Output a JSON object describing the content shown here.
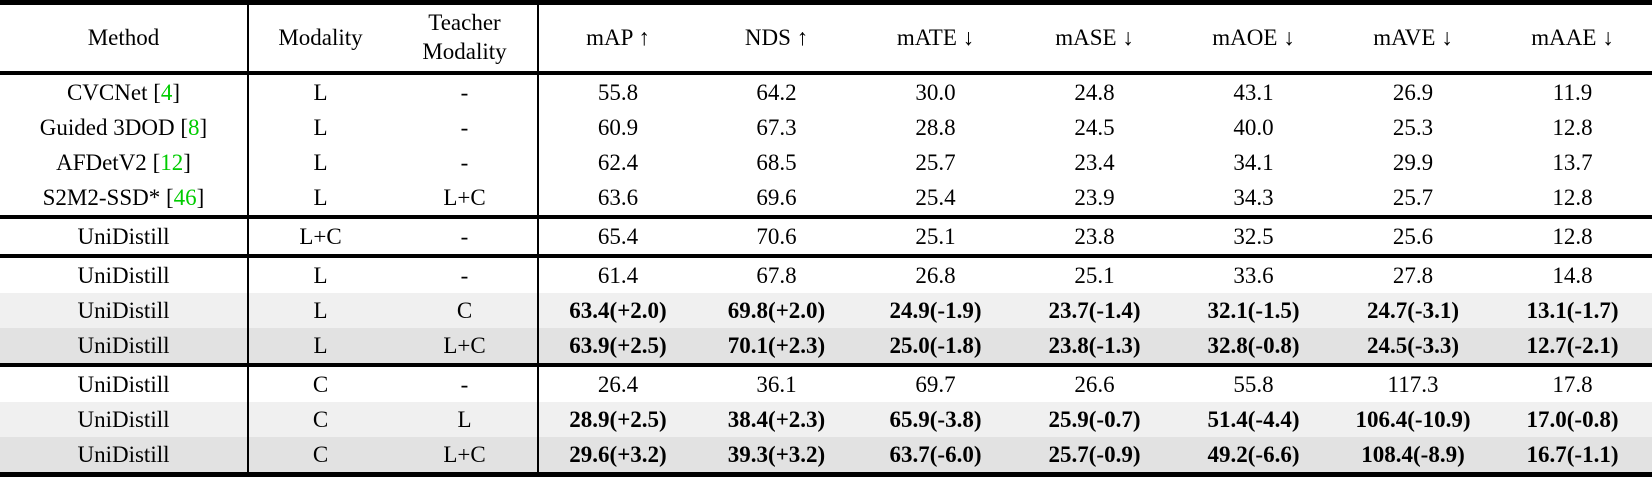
{
  "table": {
    "header": {
      "method": "Method",
      "modality": "Modality",
      "teacher_modality": [
        "Teacher",
        "Modality"
      ],
      "metrics": [
        "mAP ↑",
        "NDS ↑",
        "mATE ↓",
        "mASE ↓",
        "mAOE ↓",
        "mAVE ↓",
        "mAAE ↓"
      ]
    },
    "colors": {
      "citation_green": "#00cc00",
      "row_light": "#f0f0f0",
      "row_dark": "#e2e2e2"
    },
    "rows": [
      {
        "method": "CVCNet",
        "cite": "4",
        "modality": "L",
        "teacher": "-",
        "bold": false,
        "shade": "none",
        "rule_above": false,
        "values": [
          "55.8",
          "64.2",
          "30.0",
          "24.8",
          "43.1",
          "26.9",
          "11.9"
        ]
      },
      {
        "method": "Guided 3DOD",
        "cite": "8",
        "modality": "L",
        "teacher": "-",
        "bold": false,
        "shade": "none",
        "rule_above": false,
        "values": [
          "60.9",
          "67.3",
          "28.8",
          "24.5",
          "40.0",
          "25.3",
          "12.8"
        ]
      },
      {
        "method": "AFDetV2",
        "cite": "12",
        "modality": "L",
        "teacher": "-",
        "bold": false,
        "shade": "none",
        "rule_above": false,
        "values": [
          "62.4",
          "68.5",
          "25.7",
          "23.4",
          "34.1",
          "29.9",
          "13.7"
        ]
      },
      {
        "method": "S2M2-SSD*",
        "cite": "46",
        "modality": "L",
        "teacher": "L+C",
        "bold": false,
        "shade": "none",
        "rule_above": false,
        "values": [
          "63.6",
          "69.6",
          "25.4",
          "23.9",
          "34.3",
          "25.7",
          "12.8"
        ]
      },
      {
        "method": "UniDistill",
        "cite": null,
        "modality": "L+C",
        "teacher": "-",
        "bold": false,
        "shade": "none",
        "rule_above": true,
        "values": [
          "65.4",
          "70.6",
          "25.1",
          "23.8",
          "32.5",
          "25.6",
          "12.8"
        ]
      },
      {
        "method": "UniDistill",
        "cite": null,
        "modality": "L",
        "teacher": "-",
        "bold": false,
        "shade": "none",
        "rule_above": true,
        "values": [
          "61.4",
          "67.8",
          "26.8",
          "25.1",
          "33.6",
          "27.8",
          "14.8"
        ]
      },
      {
        "method": "UniDistill",
        "cite": null,
        "modality": "L",
        "teacher": "C",
        "bold": true,
        "shade": "light",
        "rule_above": false,
        "values": [
          "63.4(+2.0)",
          "69.8(+2.0)",
          "24.9(-1.9)",
          "23.7(-1.4)",
          "32.1(-1.5)",
          "24.7(-3.1)",
          "13.1(-1.7)"
        ]
      },
      {
        "method": "UniDistill",
        "cite": null,
        "modality": "L",
        "teacher": "L+C",
        "bold": true,
        "shade": "dark",
        "rule_above": false,
        "values": [
          "63.9(+2.5)",
          "70.1(+2.3)",
          "25.0(-1.8)",
          "23.8(-1.3)",
          "32.8(-0.8)",
          "24.5(-3.3)",
          "12.7(-2.1)"
        ]
      },
      {
        "method": "UniDistill",
        "cite": null,
        "modality": "C",
        "teacher": "-",
        "bold": false,
        "shade": "none",
        "rule_above": true,
        "values": [
          "26.4",
          "36.1",
          "69.7",
          "26.6",
          "55.8",
          "117.3",
          "17.8"
        ]
      },
      {
        "method": "UniDistill",
        "cite": null,
        "modality": "C",
        "teacher": "L",
        "bold": true,
        "shade": "light",
        "rule_above": false,
        "values": [
          "28.9(+2.5)",
          "38.4(+2.3)",
          "65.9(-3.8)",
          "25.9(-0.7)",
          "51.4(-4.4)",
          "106.4(-10.9)",
          "17.0(-0.8)"
        ]
      },
      {
        "method": "UniDistill",
        "cite": null,
        "modality": "C",
        "teacher": "L+C",
        "bold": true,
        "shade": "dark",
        "rule_above": false,
        "values": [
          "29.6(+3.2)",
          "39.3(+3.2)",
          "63.7(-6.0)",
          "25.7(-0.9)",
          "49.2(-6.6)",
          "108.4(-8.9)",
          "16.7(-1.1)"
        ]
      }
    ]
  }
}
